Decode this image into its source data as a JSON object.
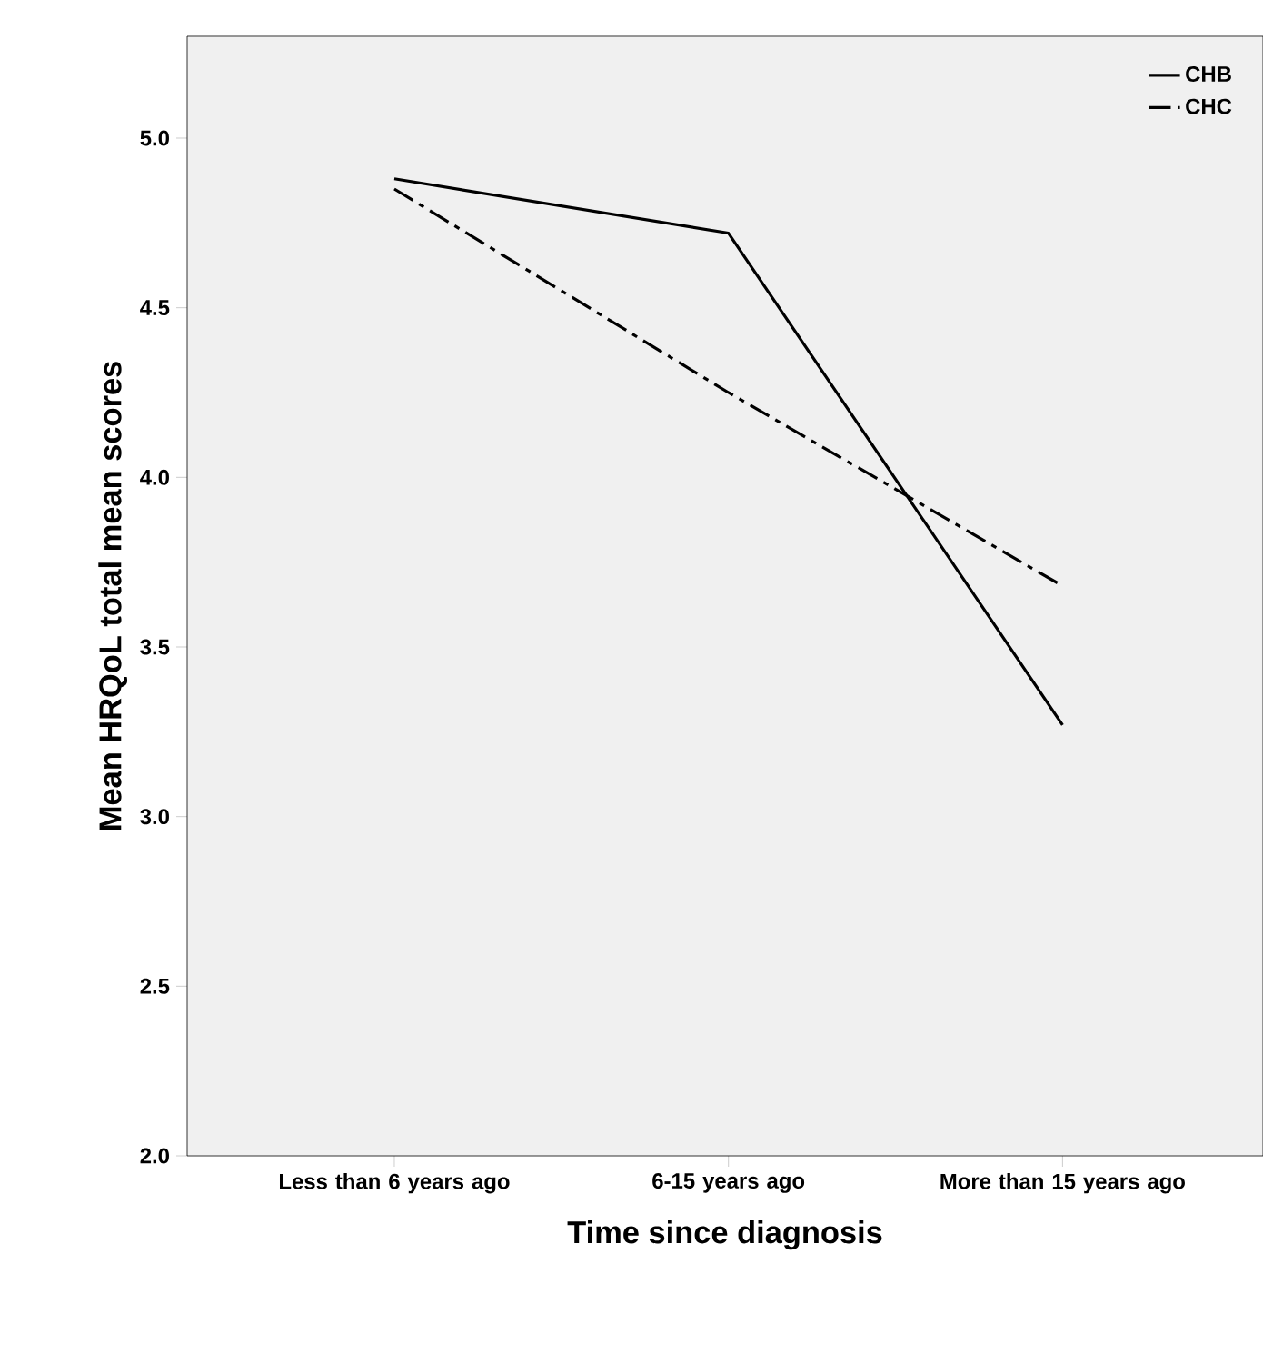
{
  "chart_data": {
    "type": "line",
    "xlabel": "Time since diagnosis",
    "ylabel": "Mean HRQoL total mean scores",
    "categories": [
      "Less than 6 years ago",
      "6-15 years ago",
      "More than 15 years ago"
    ],
    "series": [
      {
        "name": "CHB",
        "color": "#000000",
        "line_style": "solid",
        "values": [
          4.88,
          4.72,
          3.27
        ]
      },
      {
        "name": "CHC",
        "color": "#000000",
        "line_style": "dashdot",
        "values": [
          4.85,
          4.25,
          3.68
        ]
      }
    ],
    "ylim": [
      2.0,
      5.3
    ],
    "yticks": [
      {
        "value": 2.0,
        "label": "2.0"
      },
      {
        "value": 2.5,
        "label": "2.5"
      },
      {
        "value": 3.0,
        "label": "3.0"
      },
      {
        "value": 3.5,
        "label": "3.5"
      },
      {
        "value": 4.0,
        "label": "4.0"
      },
      {
        "value": 4.5,
        "label": "4.5"
      },
      {
        "value": 5.0,
        "label": "5.0"
      }
    ],
    "grid": false,
    "legend": "top right",
    "marker": "none"
  }
}
